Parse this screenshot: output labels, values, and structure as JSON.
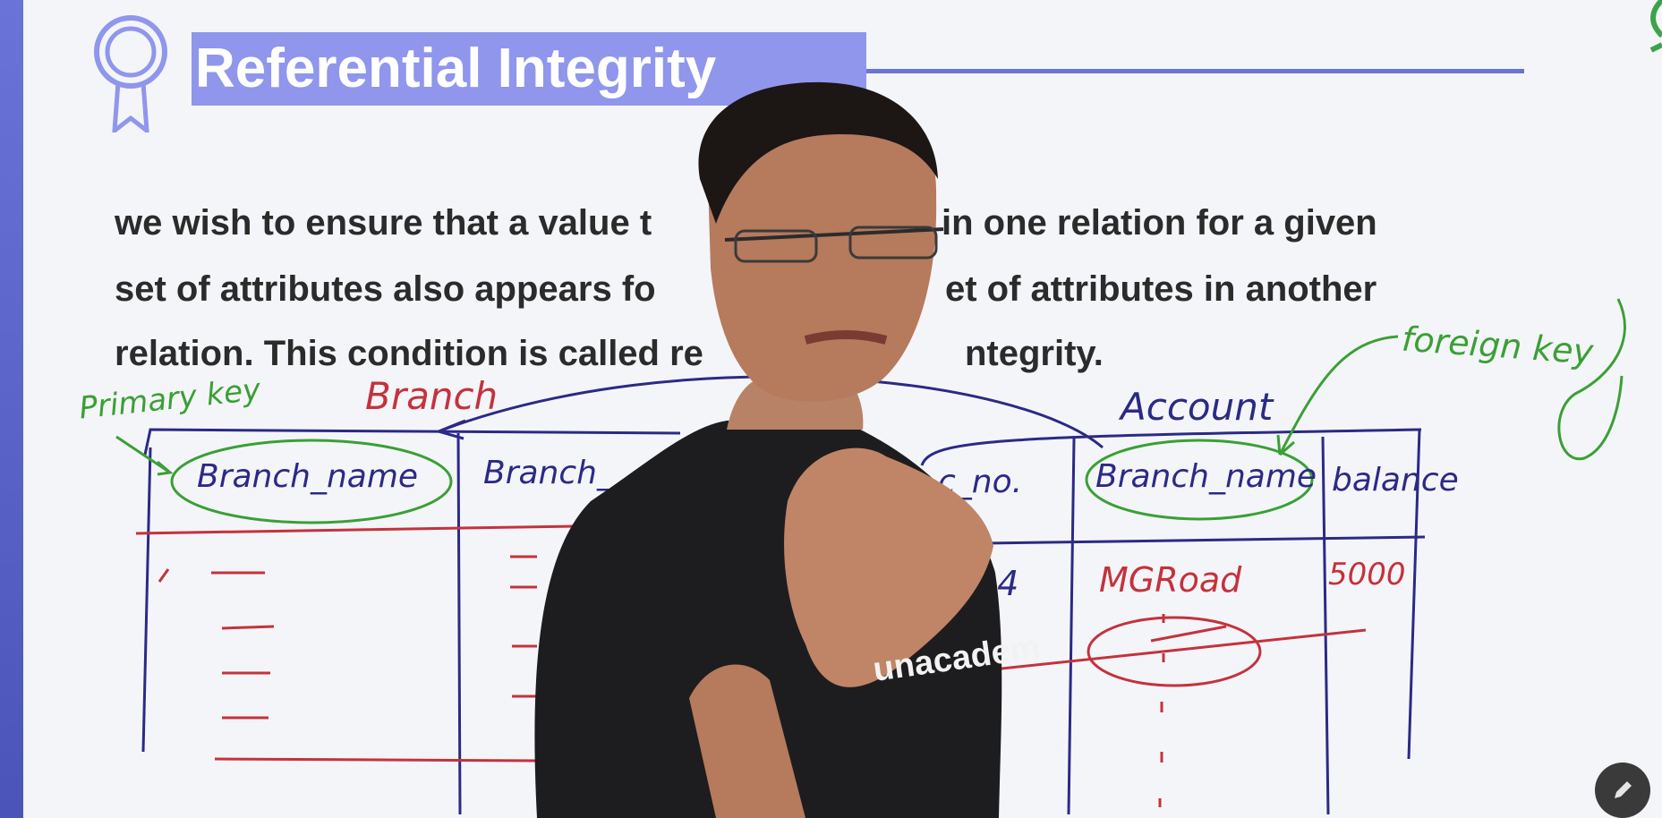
{
  "slide": {
    "title": "Referential Integrity",
    "paragraph_lines": [
      "we wish to ensure that a value t",
      "in one relation for a given",
      "set of attributes also appears fo",
      "et of attributes in another",
      "relation. This condition is called re",
      "ntegrity."
    ]
  },
  "annotations": {
    "primary_key": "Primary key",
    "branch_relation": "Branch",
    "account_relation": "Account",
    "foreign_key": "foreign key"
  },
  "branch_table": {
    "headers": [
      "Branch_name",
      "Branch_"
    ]
  },
  "account_table": {
    "headers": [
      "c_no.",
      "Branch_name",
      "balance"
    ],
    "row": [
      "34",
      "MGRoad",
      "5000"
    ]
  },
  "overlay": {
    "shirt_text": "unacadem",
    "edit_button_icon": "pencil-icon"
  },
  "colors": {
    "accent": "#8f96ec",
    "ink_green": "#3aa035",
    "ink_red": "#c4323d",
    "ink_blue": "#2b2a86"
  }
}
